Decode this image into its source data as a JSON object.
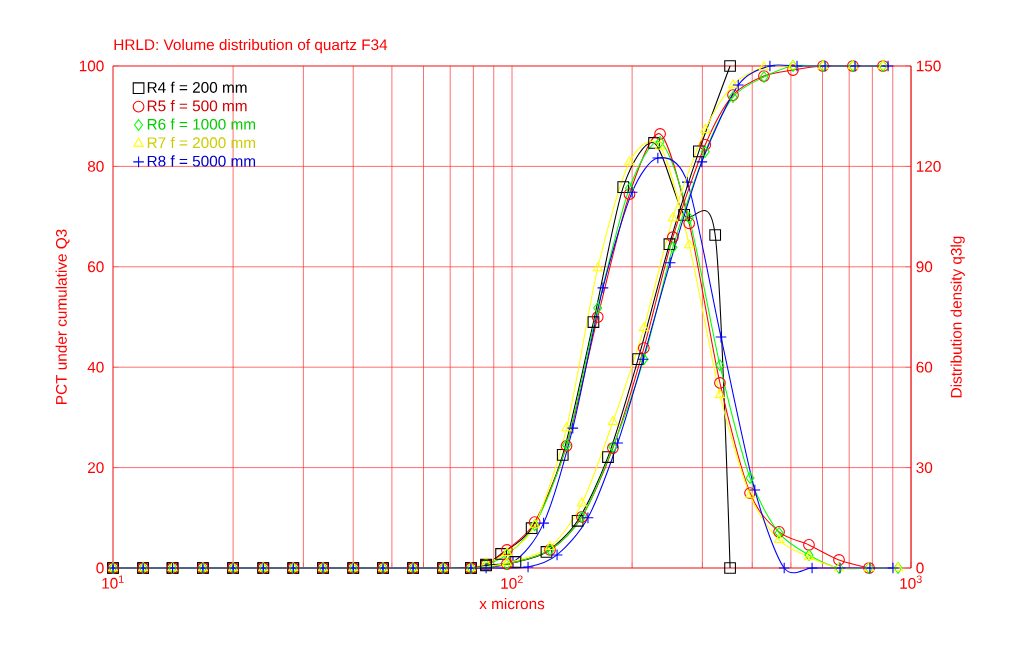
{
  "chart_data": {
    "type": "line",
    "title": "HRLD: Volume distribution of quartz F34",
    "xlabel": "x microns",
    "ylabel": "PCT under cumulative Q3",
    "y2label": "Distribution density q3lg",
    "log": "x",
    "grid": true,
    "legend": "top left",
    "xlim": [
      10,
      1000
    ],
    "xticks": [
      {
        "value": 10,
        "label": "10$^{1}$"
      },
      {
        "value": 20,
        "label": null
      },
      {
        "value": 30,
        "label": null
      },
      {
        "value": 40,
        "label": null
      },
      {
        "value": 50,
        "label": null
      },
      {
        "value": 60,
        "label": null
      },
      {
        "value": 70,
        "label": null
      },
      {
        "value": 80,
        "label": null
      },
      {
        "value": 90,
        "label": null
      },
      {
        "value": 100,
        "label": "10$^{2}$"
      },
      {
        "value": 200,
        "label": null
      },
      {
        "value": 300,
        "label": null
      },
      {
        "value": 400,
        "label": null
      },
      {
        "value": 500,
        "label": null
      },
      {
        "value": 600,
        "label": null
      },
      {
        "value": 700,
        "label": null
      },
      {
        "value": 800,
        "label": null
      },
      {
        "value": 900,
        "label": null
      },
      {
        "value": 1000,
        "label": "10$^{3}$"
      }
    ],
    "ylim": [
      0,
      100
    ],
    "yticks": [
      0,
      20,
      40,
      60,
      80,
      100
    ],
    "y2lim": [
      0,
      150
    ],
    "y2ticks": [
      0,
      30,
      60,
      90,
      120,
      150
    ],
    "series": [
      {
        "name": "R4 f = 200 mm",
        "color": "#000000",
        "marker": "square",
        "axis": "y",
        "x": [
          10,
          11.9,
          14.1,
          16.8,
          20,
          23.8,
          28.3,
          33.6,
          40,
          47.5,
          56.5,
          67.2,
          78.9,
          86.1,
          102,
          122,
          146,
          174,
          207,
          248,
          294,
          352
        ],
        "values": [
          0,
          0,
          0,
          0,
          0,
          0,
          0,
          0,
          0,
          0,
          0,
          0,
          0,
          0.5,
          1.2,
          3.2,
          9.4,
          22.1,
          41.6,
          64.5,
          83,
          100
        ]
      },
      {
        "name": "R5 f = 500 mm",
        "color": "#ff0000",
        "marker": "circle",
        "axis": "y",
        "x": [
          10,
          11.9,
          14.1,
          16.8,
          20,
          23.8,
          28.3,
          33.6,
          40,
          47.5,
          56.5,
          67.2,
          78.9,
          97.1,
          124.5,
          149.7,
          179,
          214,
          253,
          305,
          358,
          428,
          506,
          602,
          715,
          851
        ],
        "values": [
          0,
          0,
          0,
          0,
          0,
          0,
          0,
          0,
          0,
          0,
          0,
          0,
          0,
          0.8,
          3.6,
          10.2,
          23.9,
          43.8,
          65.9,
          84.3,
          94.2,
          98,
          99.2,
          100,
          100,
          100
        ]
      },
      {
        "name": "R6 f = 1000 mm",
        "color": "#00ff00",
        "marker": "diamond",
        "axis": "y",
        "x": [
          10,
          11.9,
          14.1,
          16.8,
          20,
          23.8,
          28.3,
          33.6,
          40,
          47.5,
          56.5,
          67.2,
          78.9,
          97.1,
          124.5,
          149.7,
          179,
          214,
          253,
          305,
          358,
          428,
          506,
          602,
          715,
          851
        ],
        "values": [
          0,
          0,
          0,
          0,
          0,
          0,
          0,
          0,
          0,
          0,
          0,
          0,
          0,
          0.8,
          3.6,
          10.2,
          24.1,
          41.6,
          63.9,
          82.9,
          93.8,
          97.8,
          100,
          100,
          100,
          100
        ]
      },
      {
        "name": "R7 f = 2000 mm",
        "color": "#ffff00",
        "marker": "triangle",
        "axis": "y",
        "x": [
          10,
          11.9,
          14.1,
          16.8,
          20,
          23.8,
          28.3,
          33.6,
          40,
          47.5,
          56.5,
          67.2,
          78.9,
          97.1,
          124.5,
          149.7,
          179,
          214,
          253,
          305,
          358,
          428,
          506,
          602,
          715,
          851
        ],
        "values": [
          0,
          0,
          0,
          0,
          0,
          0,
          0,
          0,
          0,
          0,
          0,
          0,
          0,
          1,
          4.2,
          12.9,
          29.1,
          47.8,
          69.7,
          87.3,
          96.2,
          99.8,
          100,
          100,
          100,
          100
        ]
      },
      {
        "name": "R8 f = 5000 mm",
        "color": "#0000ff",
        "marker": "cross",
        "axis": "y",
        "x": [
          10,
          11.9,
          14.1,
          16.8,
          20,
          23.8,
          28.3,
          33.6,
          40,
          47.5,
          56.5,
          67.2,
          78.9,
          86.1,
          109.7,
          129.7,
          155,
          184,
          213,
          249,
          299,
          369,
          443,
          518,
          609,
          724,
          876
        ],
        "values": [
          0,
          0,
          0,
          0,
          0,
          0,
          0,
          0,
          0,
          0,
          0,
          0,
          0,
          0,
          0.2,
          2.6,
          10,
          24.9,
          41.6,
          60.8,
          80.9,
          96.2,
          100,
          100,
          100,
          100,
          100
        ]
      },
      {
        "color": "#000000",
        "marker": "square",
        "axis": "y2",
        "x": [
          10,
          11.9,
          14.1,
          16.8,
          20,
          23.8,
          28.3,
          33.6,
          40,
          47.5,
          56.5,
          67.2,
          78.9,
          86.1,
          93.9,
          112,
          134,
          160,
          190,
          227,
          270,
          323,
          352
        ],
        "values": [
          0,
          0,
          0,
          0,
          0,
          0,
          0,
          0,
          0,
          0,
          0,
          0,
          0,
          1,
          4.2,
          11.9,
          33.8,
          73.5,
          113.8,
          127,
          105.5,
          99.5,
          0
        ]
      },
      {
        "color": "#ff0000",
        "marker": "circle",
        "axis": "y2",
        "x": [
          10,
          11.9,
          14.1,
          16.8,
          20,
          23.8,
          28.3,
          33.6,
          40,
          47.5,
          56.5,
          67.2,
          78.9,
          86.1,
          97.1,
          114,
          137,
          164,
          197,
          235,
          278,
          332,
          395,
          467,
          555,
          660,
          785
        ],
        "values": [
          0,
          0,
          0,
          0,
          0,
          0,
          0,
          0,
          0,
          0,
          0,
          0,
          0,
          1,
          5.4,
          13.7,
          36.5,
          75,
          111.7,
          129.7,
          103,
          55.3,
          22.4,
          10.8,
          6.9,
          2.4,
          0
        ]
      },
      {
        "color": "#00ff00",
        "marker": "diamond",
        "axis": "y2",
        "x": [
          10,
          11.9,
          14.1,
          16.8,
          20,
          23.8,
          28.3,
          33.6,
          40,
          47.5,
          56.5,
          67.2,
          78.9,
          86.1,
          97.1,
          114,
          137,
          164,
          197,
          235,
          278,
          332,
          395,
          467,
          555,
          660,
          785,
          928
        ],
        "values": [
          0,
          0,
          0,
          0,
          0,
          0,
          0,
          0,
          0,
          0,
          0,
          0,
          0,
          1,
          4,
          12.8,
          36.7,
          77.7,
          113.5,
          127.3,
          104.6,
          60.6,
          26.9,
          10.5,
          3.9,
          0,
          0,
          0
        ]
      },
      {
        "color": "#ffff00",
        "marker": "triangle",
        "axis": "y2",
        "x": [
          10,
          11.9,
          14.1,
          16.8,
          20,
          23.8,
          28.3,
          33.6,
          40,
          47.5,
          56.5,
          67.2,
          78.9,
          86.1,
          97.1,
          114,
          137,
          164,
          197,
          235,
          278,
          332,
          395,
          467,
          555,
          660,
          785,
          928
        ],
        "values": [
          0,
          0,
          0,
          0,
          0,
          0,
          0,
          0,
          0,
          0,
          0,
          0,
          0,
          1.5,
          4.5,
          12.8,
          41.8,
          89.6,
          121.3,
          126,
          96.5,
          51.7,
          21.8,
          8.4,
          3.3,
          0,
          0,
          0
        ]
      },
      {
        "color": "#0000ff",
        "marker": "cross",
        "axis": "y2",
        "x": [
          10,
          11.9,
          14.1,
          16.8,
          20,
          23.8,
          28.3,
          33.6,
          40,
          47.5,
          56.5,
          67.2,
          78.9,
          100.6,
          120,
          142,
          169,
          200,
          232,
          275,
          334,
          406,
          481,
          565,
          664,
          789,
          901
        ],
        "values": [
          0,
          0,
          0,
          0,
          0,
          0,
          0,
          0,
          0,
          0,
          0,
          0,
          0,
          1.8,
          13.4,
          41.8,
          83.7,
          112.3,
          122.5,
          115.3,
          69,
          23.3,
          0,
          0,
          0,
          0,
          0
        ]
      }
    ]
  }
}
